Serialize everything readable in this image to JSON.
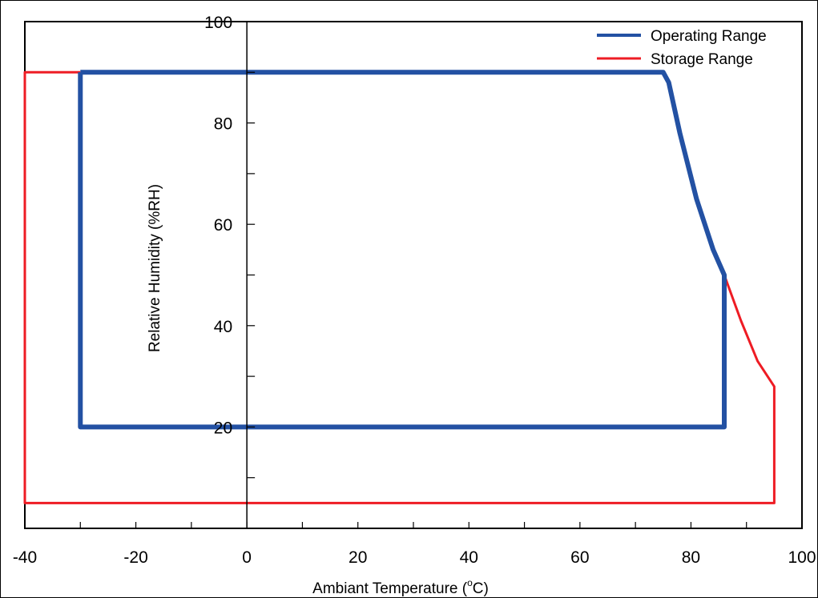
{
  "chart_data": {
    "type": "line",
    "title": "",
    "xlabel": "Ambiant Temperature (",
    "xlabel_unit": "C)",
    "xlabel_degree": "o",
    "ylabel": "Relative Humidity (%RH)",
    "xlim": [
      -40,
      100
    ],
    "ylim": [
      0,
      100
    ],
    "x_ticks": [
      -40,
      -20,
      0,
      20,
      40,
      60,
      80,
      100
    ],
    "x_minor_step": 10,
    "y_ticks": [
      20,
      40,
      60,
      80,
      100
    ],
    "y_minor_step": 10,
    "grid": false,
    "legend_position": "top-right",
    "series": [
      {
        "name": "Operating Range",
        "color": "#2351a3",
        "x": [
          -30,
          75,
          76,
          78,
          81,
          84,
          86,
          86,
          -30,
          -30
        ],
        "y": [
          90,
          90,
          88,
          78,
          65,
          55,
          50,
          20,
          20,
          90
        ]
      },
      {
        "name": "Storage Range",
        "color": "#ee1c24",
        "x": [
          -30,
          -40,
          -40,
          95,
          95,
          92,
          89,
          86
        ],
        "y": [
          90,
          90,
          5,
          5,
          28,
          33,
          41,
          50
        ]
      }
    ]
  }
}
